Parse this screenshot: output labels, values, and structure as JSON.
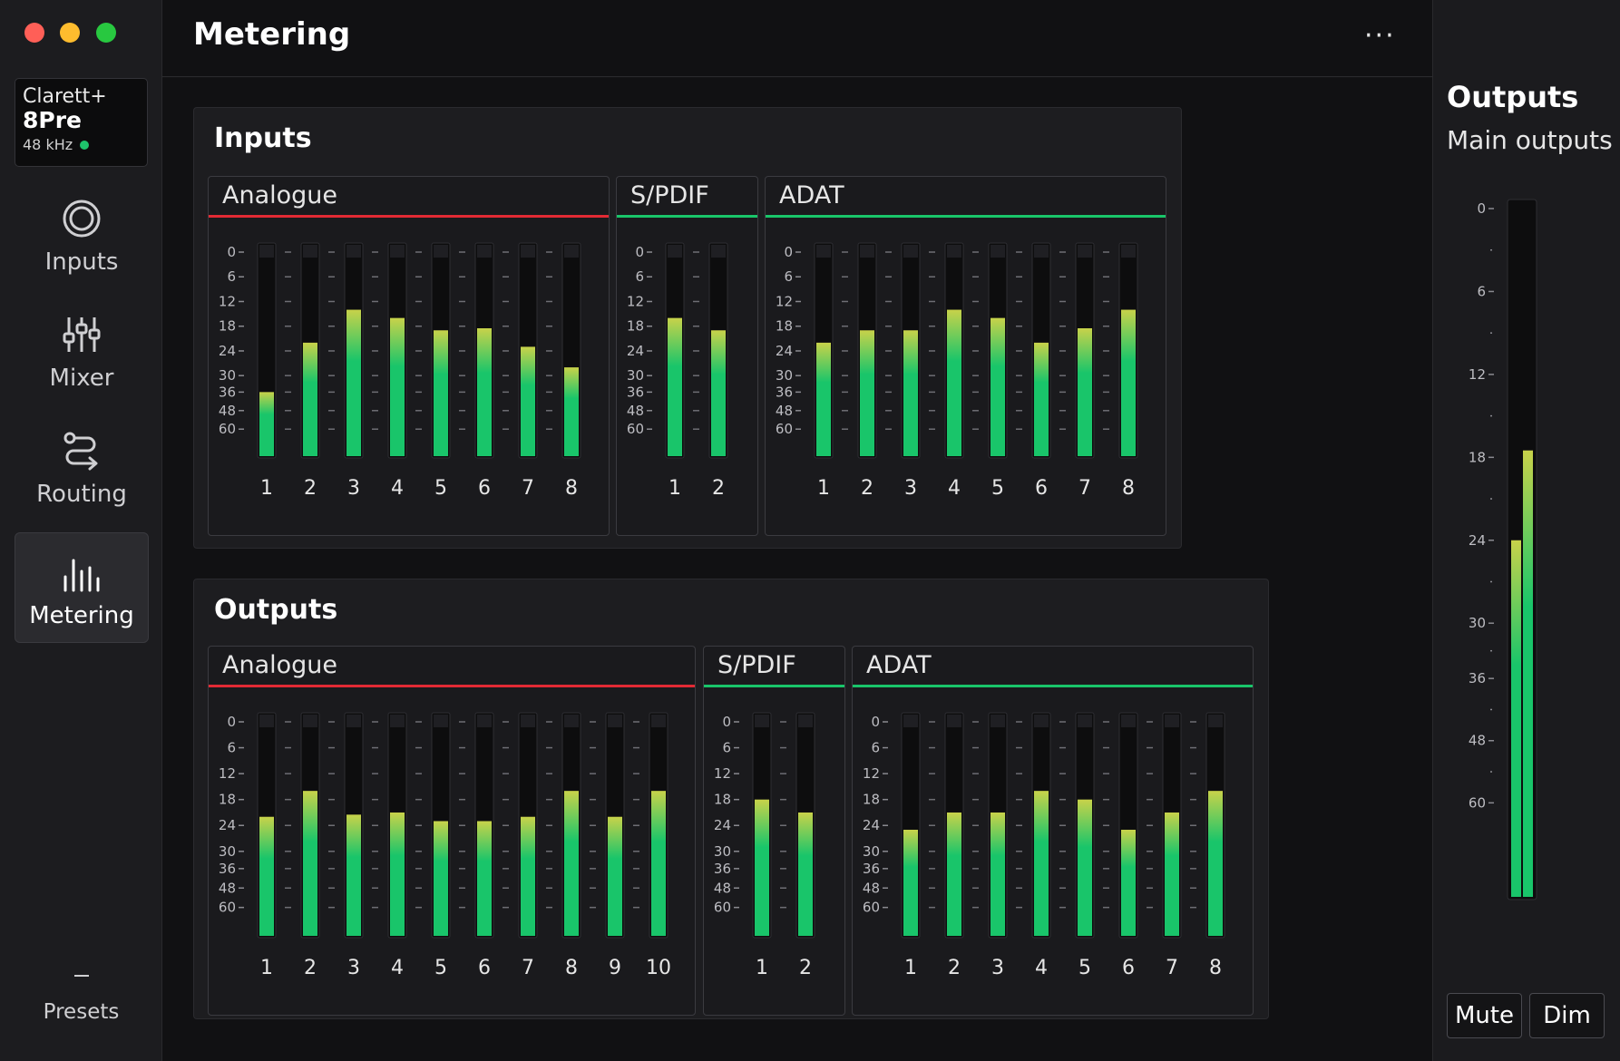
{
  "window": {
    "traffic_lights": [
      "close",
      "minimize",
      "zoom"
    ]
  },
  "device": {
    "line1": "Clarett+",
    "line2": "8Pre",
    "rate": "48 kHz",
    "status_color": "#1ec36b"
  },
  "nav": {
    "items": [
      {
        "label": "Inputs",
        "icon": "inputs-icon"
      },
      {
        "label": "Mixer",
        "icon": "mixer-icon"
      },
      {
        "label": "Routing",
        "icon": "routing-icon"
      },
      {
        "label": "Metering",
        "icon": "metering-icon",
        "active": true
      }
    ],
    "presets": "Presets"
  },
  "header": {
    "title": "Metering",
    "more": "···"
  },
  "scale_labels": [
    "0",
    "6",
    "12",
    "18",
    "24",
    "30",
    "36",
    "48",
    "60"
  ],
  "sections": {
    "inputs": {
      "title": "Inputs",
      "groups": [
        {
          "name": "Analogue",
          "accent": "#e22a34",
          "channels": [
            "1",
            "2",
            "3",
            "4",
            "5",
            "6",
            "7",
            "8"
          ],
          "levels_db": [
            -36,
            -22,
            -14,
            -16,
            -19,
            -18.5,
            -23,
            -28
          ]
        },
        {
          "name": "S/PDIF",
          "accent": "#19c56a",
          "channels": [
            "1",
            "2"
          ],
          "levels_db": [
            -16,
            -19
          ]
        },
        {
          "name": "ADAT",
          "accent": "#19c56a",
          "channels": [
            "1",
            "2",
            "3",
            "4",
            "5",
            "6",
            "7",
            "8"
          ],
          "levels_db": [
            -22,
            -19,
            -19,
            -14,
            -16,
            -22,
            -18.5,
            -14
          ]
        }
      ]
    },
    "outputs": {
      "title": "Outputs",
      "groups": [
        {
          "name": "Analogue",
          "accent": "#e22a34",
          "channels": [
            "1",
            "2",
            "3",
            "4",
            "5",
            "6",
            "7",
            "8",
            "9",
            "10"
          ],
          "levels_db": [
            -22,
            -16,
            -21.5,
            -21,
            -23,
            -23,
            -22,
            -16,
            -22,
            -16
          ]
        },
        {
          "name": "S/PDIF",
          "accent": "#19c56a",
          "channels": [
            "1",
            "2"
          ],
          "levels_db": [
            -18,
            -21
          ]
        },
        {
          "name": "ADAT",
          "accent": "#19c56a",
          "channels": [
            "1",
            "2",
            "3",
            "4",
            "5",
            "6",
            "7",
            "8"
          ],
          "levels_db": [
            -25,
            -21,
            -21,
            -16,
            -18,
            -25,
            -21,
            -16
          ]
        }
      ]
    }
  },
  "right_panel": {
    "title": "Outputs",
    "subtitle": "Main outputs",
    "scale_labels": [
      "0",
      "6",
      "12",
      "18",
      "24",
      "30",
      "36",
      "48",
      "60"
    ],
    "levels_db": [
      -24,
      -17.5
    ],
    "mute": "Mute",
    "dim": "Dim"
  },
  "colors": {
    "meter_green": "#19c56a",
    "meter_yellow": "#c8d24a",
    "clip_red": "#e22a34",
    "meter_track": "#0d0d0e"
  }
}
